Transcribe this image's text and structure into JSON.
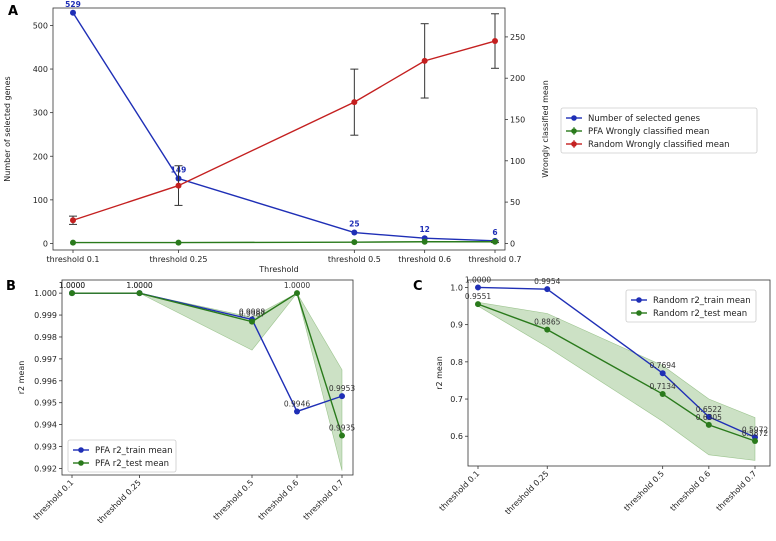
{
  "colors": {
    "blue": "#1f2fb6",
    "green": "#2a7a1c",
    "red": "#c42020",
    "band": "#6ea85a",
    "err": "#333333",
    "label_blue": "#1f2fb6"
  },
  "chart_data": [
    {
      "panel": "A",
      "type": "line",
      "categories": [
        "threshold 0.1",
        "threshold 0.25",
        "threshold 0.5",
        "threshold 0.6",
        "threshold 0.7"
      ],
      "x": [
        0.1,
        0.25,
        0.5,
        0.6,
        0.7
      ],
      "xlabel": "Threshold",
      "ylabel": "Number of selected genes",
      "ylabel_right": "Wrongly classified mean",
      "ylim": [
        -15,
        540
      ],
      "ylim_right": [
        -8,
        285
      ],
      "yticks": [
        0,
        100,
        200,
        300,
        400,
        500
      ],
      "yticks_right": [
        0,
        50,
        100,
        150,
        200,
        250
      ],
      "series": [
        {
          "name": "Number of selected genes",
          "axis": "left",
          "color": "blue",
          "values": [
            529,
            149,
            25,
            12,
            6
          ],
          "labels": [
            "529",
            "149",
            "25",
            "12",
            "6"
          ]
        },
        {
          "name": "PFA Wrongly classified mean",
          "axis": "right",
          "color": "green",
          "values": [
            1,
            1,
            1.5,
            2,
            2
          ],
          "err": [
            0,
            0,
            0,
            0,
            1
          ]
        },
        {
          "name": "Random Wrongly classified mean",
          "axis": "right",
          "color": "red",
          "values": [
            28,
            70,
            171,
            221,
            245
          ],
          "err": [
            5,
            24,
            40,
            45,
            33
          ]
        }
      ],
      "legend": [
        "Number of selected genes",
        "PFA Wrongly classified mean",
        "Random Wrongly classified mean"
      ],
      "legend_position": "right"
    },
    {
      "panel": "B",
      "type": "line",
      "categories": [
        "threshold 0.1",
        "threshold 0.25",
        "threshold 0.5",
        "threshold 0.6",
        "threshold 0.7"
      ],
      "x": [
        0.1,
        0.25,
        0.5,
        0.6,
        0.7
      ],
      "ylabel": "r2 mean",
      "ylim": [
        0.9917,
        1.0006
      ],
      "yticks": [
        "1.000",
        "0.999",
        "0.998",
        "0.997",
        "0.996",
        "0.995",
        "0.994",
        "0.993",
        "0.992"
      ],
      "series": [
        {
          "name": "PFA r2_train mean",
          "color": "blue",
          "values": [
            1.0,
            1.0,
            0.9988,
            0.9946,
            0.9953
          ],
          "labels": [
            "1.0000",
            "1.0000",
            "0.9988",
            "0.9946",
            "0.9953"
          ]
        },
        {
          "name": "PFA r2_test mean",
          "color": "green",
          "values": [
            1.0,
            1.0,
            0.9987,
            1.0,
            0.9935
          ],
          "labels": [
            "1.0000",
            "1.0000",
            "0.9987",
            "1.0000",
            "0.9935"
          ],
          "band_low": [
            1.0,
            1.0,
            0.9974,
            1.0,
            0.9919
          ],
          "band_high": [
            1.0,
            1.0,
            0.9989,
            1.0,
            0.9965
          ]
        }
      ],
      "legend": [
        "PFA r2_train mean",
        "PFA r2_test mean"
      ],
      "legend_position": "lower-left"
    },
    {
      "panel": "C",
      "type": "line",
      "categories": [
        "threshold 0.1",
        "threshold 0.25",
        "threshold 0.5",
        "threshold 0.6",
        "threshold 0.7"
      ],
      "x": [
        0.1,
        0.25,
        0.5,
        0.6,
        0.7
      ],
      "ylabel": "r2 mean",
      "ylim": [
        0.52,
        1.02
      ],
      "yticks": [
        "1.0",
        "0.9",
        "0.8",
        "0.7",
        "0.6"
      ],
      "series": [
        {
          "name": "Random r2_train mean",
          "color": "blue",
          "values": [
            1.0,
            0.9954,
            0.7694,
            0.6522,
            0.5972
          ],
          "labels": [
            "1.0000",
            "0.9954",
            "0.7694",
            "0.6522",
            "0.5972"
          ]
        },
        {
          "name": "Random r2_test mean",
          "color": "green",
          "values": [
            0.9551,
            0.8865,
            0.7134,
            0.6305,
            0.5872
          ],
          "labels": [
            "0.9551",
            "0.8865",
            "0.7134",
            "0.6305",
            "0.5872"
          ],
          "band_low": [
            0.95,
            0.84,
            0.64,
            0.55,
            0.535
          ],
          "band_high": [
            0.96,
            0.93,
            0.79,
            0.7,
            0.65
          ]
        }
      ],
      "legend": [
        "Random r2_train mean",
        "Random r2_test mean"
      ],
      "legend_position": "top-right"
    }
  ]
}
